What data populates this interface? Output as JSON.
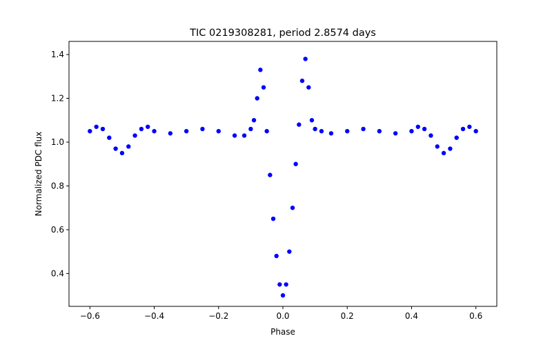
{
  "chart_data": {
    "type": "scatter",
    "title": "TIC 0219308281, period 2.8574 days",
    "xlabel": "Phase",
    "ylabel": "Normalized PDC flux",
    "xlim": [
      -0.665,
      0.665
    ],
    "ylim": [
      0.25,
      1.46
    ],
    "xticks": [
      -0.6,
      -0.4,
      -0.2,
      0.0,
      0.2,
      0.4,
      0.6
    ],
    "xtick_labels": [
      "−0.6",
      "−0.4",
      "−0.2",
      "0.0",
      "0.2",
      "0.4",
      "0.6"
    ],
    "yticks": [
      0.4,
      0.6,
      0.8,
      1.0,
      1.2,
      1.4
    ],
    "ytick_labels": [
      "0.4",
      "0.6",
      "0.8",
      "1.0",
      "1.2",
      "1.4"
    ],
    "grid": false,
    "marker_color": "#0000ff",
    "series": [
      {
        "x": [
          -0.6,
          -0.58,
          -0.56,
          -0.54,
          -0.52,
          -0.5,
          -0.48,
          -0.46,
          -0.44,
          -0.42,
          -0.4,
          -0.35,
          -0.3,
          -0.25,
          -0.2,
          -0.15,
          -0.12,
          -0.1,
          -0.09,
          -0.08,
          -0.07,
          -0.06,
          -0.05,
          -0.04,
          -0.03,
          -0.02,
          -0.01,
          0.0,
          0.01,
          0.02,
          0.03,
          0.04,
          0.05,
          0.06,
          0.07,
          0.08,
          0.09,
          0.1,
          0.12,
          0.15,
          0.2,
          0.25,
          0.3,
          0.35,
          0.4,
          0.42,
          0.44,
          0.46,
          0.48,
          0.5,
          0.52,
          0.54,
          0.56,
          0.58,
          0.6
        ],
        "y": [
          1.05,
          1.07,
          1.06,
          1.02,
          0.97,
          0.95,
          0.98,
          1.03,
          1.06,
          1.07,
          1.05,
          1.04,
          1.05,
          1.06,
          1.05,
          1.03,
          1.03,
          1.06,
          1.1,
          1.2,
          1.33,
          1.25,
          1.05,
          0.85,
          0.65,
          0.48,
          0.35,
          0.3,
          0.35,
          0.5,
          0.7,
          0.9,
          1.08,
          1.28,
          1.38,
          1.25,
          1.1,
          1.06,
          1.05,
          1.04,
          1.05,
          1.06,
          1.05,
          1.04,
          1.05,
          1.07,
          1.06,
          1.03,
          0.98,
          0.95,
          0.97,
          1.02,
          1.06,
          1.07,
          1.05
        ]
      }
    ]
  }
}
